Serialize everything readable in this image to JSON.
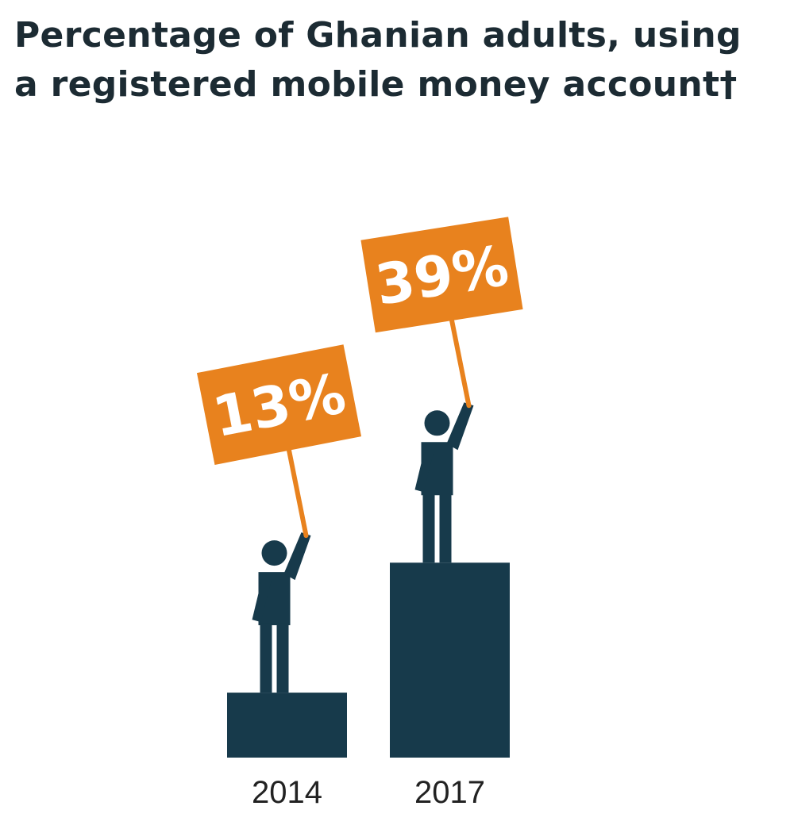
{
  "title_line1": "Percentage of Ghanian adults, using",
  "title_line2": "a registered mobile money account†",
  "colors": {
    "bar": "#173a4b",
    "sign": "#e8821e",
    "sign_text": "#ffffff",
    "title": "#1c2b33",
    "tick_text": "#222222"
  },
  "chart_data": {
    "type": "bar",
    "title": "Percentage of Ghanian adults, using a registered mobile money account†",
    "categories": [
      "2014",
      "2017"
    ],
    "values": [
      13,
      39
    ],
    "value_labels": [
      "13%",
      "39%"
    ],
    "unit": "%",
    "xlabel": "",
    "ylabel": "",
    "grid": false,
    "legend": "none"
  }
}
